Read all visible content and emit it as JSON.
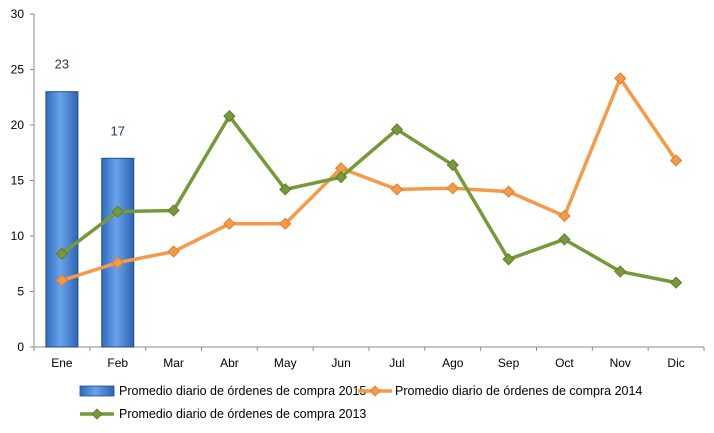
{
  "chart_data": {
    "type": "bar",
    "categories": [
      "Ene",
      "Feb",
      "Mar",
      "Abr",
      "May",
      "Jun",
      "Jul",
      "Ago",
      "Sep",
      "Oct",
      "Nov",
      "Dic"
    ],
    "ylim": [
      0,
      30
    ],
    "yticks": [
      0,
      5,
      10,
      15,
      20,
      25,
      30
    ],
    "grid": false,
    "legend_position": "bottom",
    "series": [
      {
        "name": "Promedio diario de órdenes de compra 2015",
        "type": "bar",
        "color": "#4a86d4",
        "values": [
          23,
          17,
          null,
          null,
          null,
          null,
          null,
          null,
          null,
          null,
          null,
          null
        ],
        "data_labels": [
          "23",
          "17"
        ]
      },
      {
        "name": "Promedio diario de órdenes de compra 2014",
        "type": "line",
        "color": "#f59a48",
        "marker": "diamond",
        "values": [
          6.0,
          7.6,
          8.6,
          11.1,
          11.1,
          16.1,
          14.2,
          14.3,
          14.0,
          11.8,
          24.2,
          16.8
        ]
      },
      {
        "name": "Promedio diario de órdenes de compra 2013",
        "type": "line",
        "color": "#77993a",
        "marker": "diamond",
        "values": [
          8.4,
          12.2,
          12.3,
          20.8,
          14.2,
          15.3,
          19.6,
          16.4,
          7.9,
          9.7,
          6.8,
          5.8
        ]
      }
    ]
  }
}
